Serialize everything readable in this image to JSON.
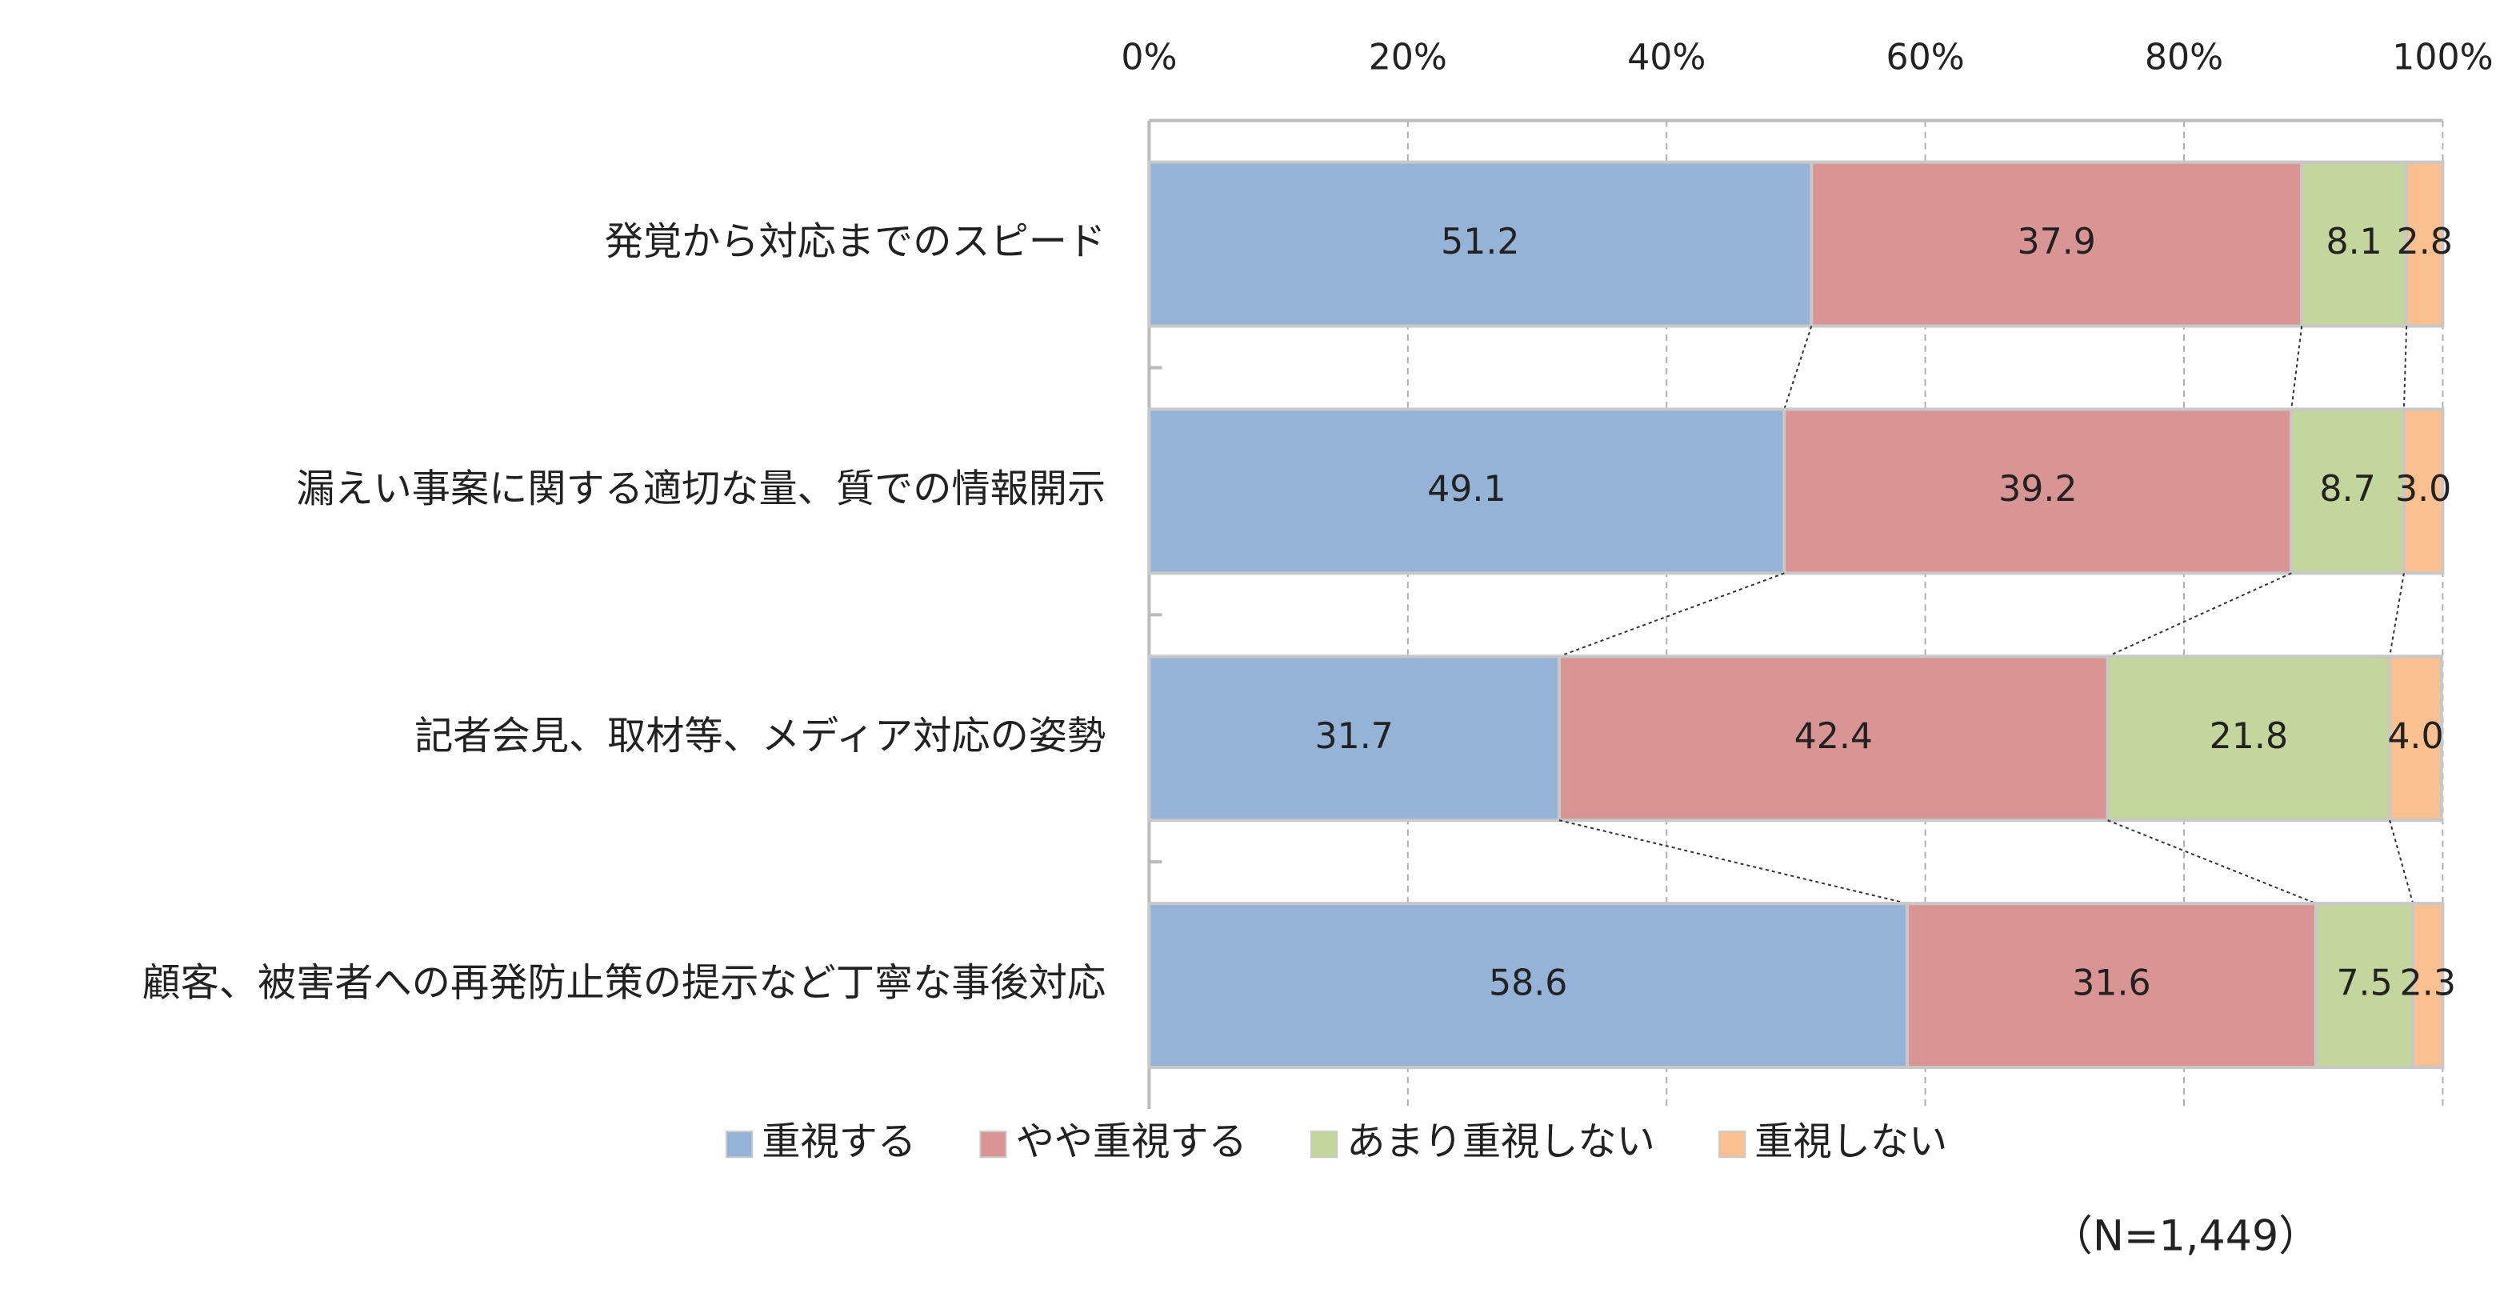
{
  "chart_data": {
    "type": "stacked_bar_horizontal",
    "categories": [
      "発覚から対応までのスピード",
      "漏えい事案に関する適切な量、質での情報開示",
      "記者会見、取材等、メディア対応の姿勢",
      "顧客、被害者への再発防止策の提示など丁寧な事後対応"
    ],
    "series": [
      {
        "name": "重視する",
        "color": "#95b3d7",
        "values": [
          51.2,
          49.1,
          31.7,
          58.6
        ],
        "value_labels": [
          "51.2",
          "49.1",
          "31.7",
          "58.6"
        ]
      },
      {
        "name": "やや重視する",
        "color": "#d99594",
        "values": [
          37.9,
          39.2,
          42.4,
          31.6
        ],
        "value_labels": [
          "37.9",
          "39.2",
          "42.4",
          "31.6"
        ]
      },
      {
        "name": "あまり重視しない",
        "color": "#c3d69b",
        "values": [
          8.1,
          8.7,
          21.8,
          7.5
        ],
        "value_labels": [
          "8.1",
          "8.7",
          "21.8",
          "7.5"
        ]
      },
      {
        "name": "重視しない",
        "color": "#fac090",
        "values": [
          2.8,
          3.0,
          4.0,
          2.3
        ],
        "value_labels": [
          "2.8",
          "3.0",
          "4.0",
          "2.3"
        ]
      }
    ],
    "xlim": [
      0,
      100
    ],
    "xticks": [
      {
        "value": 0,
        "label": "0%"
      },
      {
        "value": 20,
        "label": "20%"
      },
      {
        "value": 40,
        "label": "40%"
      },
      {
        "value": 60,
        "label": "60%"
      },
      {
        "value": 80,
        "label": "80%"
      },
      {
        "value": 100,
        "label": "100%"
      }
    ],
    "grid": true,
    "legend": "bottom",
    "note": "（N=1,449）"
  }
}
